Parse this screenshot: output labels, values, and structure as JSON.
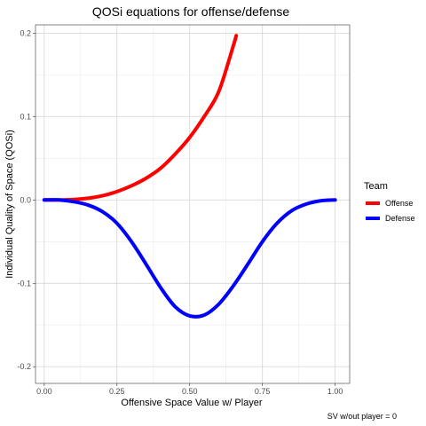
{
  "chart_data": {
    "type": "line",
    "title": "QOSi equations for offense/defense",
    "xlabel": "Offensive Space Value w/ Player",
    "ylabel": "Individual Quality of Space (QOSi)",
    "caption": "SV w/out player = 0",
    "xlim": [
      -0.03,
      1.05
    ],
    "ylim": [
      -0.22,
      0.21
    ],
    "x_ticks": [
      0.0,
      0.25,
      0.5,
      0.75,
      1.0
    ],
    "x_tick_labels": [
      "0.00",
      "0.25",
      "0.50",
      "0.75",
      "1.00"
    ],
    "y_ticks": [
      -0.2,
      -0.1,
      0.0,
      0.1,
      0.2
    ],
    "y_tick_labels": [
      "-0.2",
      "-0.1",
      "0.0",
      "0.1",
      "0.2"
    ],
    "grid": true,
    "legend": {
      "title": "Team",
      "position": "right"
    },
    "series": [
      {
        "name": "Offense",
        "color": "#ff0000",
        "x": [
          0.0,
          0.05,
          0.1,
          0.15,
          0.2,
          0.25,
          0.3,
          0.35,
          0.4,
          0.45,
          0.5,
          0.55,
          0.6,
          0.65,
          0.66
        ],
        "y": [
          0.0,
          0.0,
          0.0005,
          0.002,
          0.005,
          0.01,
          0.017,
          0.026,
          0.038,
          0.055,
          0.075,
          0.1,
          0.13,
          0.185,
          0.197
        ]
      },
      {
        "name": "Defense",
        "color": "#0000ff",
        "x": [
          0.0,
          0.05,
          0.1,
          0.15,
          0.2,
          0.25,
          0.3,
          0.35,
          0.4,
          0.45,
          0.5,
          0.55,
          0.6,
          0.65,
          0.7,
          0.75,
          0.8,
          0.85,
          0.9,
          0.95,
          1.0
        ],
        "y": [
          0.0,
          0.0,
          -0.002,
          -0.006,
          -0.014,
          -0.028,
          -0.05,
          -0.077,
          -0.105,
          -0.128,
          -0.139,
          -0.138,
          -0.125,
          -0.103,
          -0.077,
          -0.05,
          -0.028,
          -0.013,
          -0.005,
          -0.001,
          0.0
        ]
      }
    ]
  }
}
